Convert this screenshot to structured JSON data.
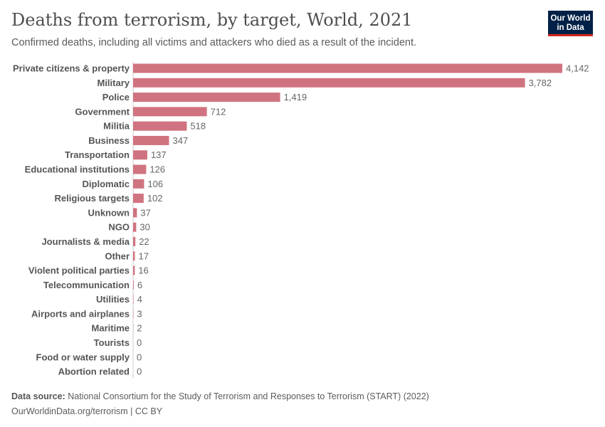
{
  "title": "Deaths from terrorism, by target, World, 2021",
  "subtitle": "Confirmed deaths, including all victims and attackers who died as a result of the incident.",
  "logo": {
    "line1": "Our World",
    "line2": "in Data",
    "bg": "#002147",
    "accent": "#ce261e"
  },
  "footer": {
    "source_label": "Data source:",
    "source": "National Consortium for the Study of Terrorism and Responses to Terrorism (START) (2022)",
    "credit": "OurWorldinData.org/terrorism | CC BY"
  },
  "chart_data": {
    "type": "bar",
    "orientation": "horizontal",
    "color": "#d07380",
    "categories": [
      "Private citizens & property",
      "Military",
      "Police",
      "Government",
      "Militia",
      "Business",
      "Transportation",
      "Educational institutions",
      "Diplomatic",
      "Religious targets",
      "Unknown",
      "NGO",
      "Journalists & media",
      "Other",
      "Violent political parties",
      "Telecommunication",
      "Utilities",
      "Airports and airplanes",
      "Maritime",
      "Tourists",
      "Food or water supply",
      "Abortion related"
    ],
    "values": [
      4142,
      3782,
      1419,
      712,
      518,
      347,
      137,
      126,
      106,
      102,
      37,
      30,
      22,
      17,
      16,
      6,
      4,
      3,
      2,
      0,
      0,
      0
    ]
  }
}
